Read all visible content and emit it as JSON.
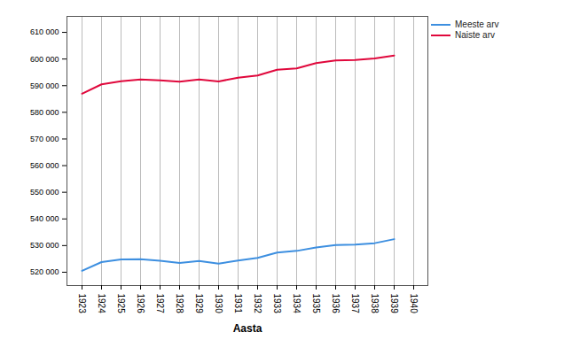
{
  "chart_data": {
    "type": "line",
    "x_label": "Aasta",
    "categories": [
      1923,
      1924,
      1925,
      1926,
      1927,
      1928,
      1929,
      1930,
      1931,
      1932,
      1933,
      1934,
      1935,
      1936,
      1937,
      1938,
      1939,
      1940
    ],
    "series": [
      {
        "name": "Meeste arv",
        "color": "#3d8fe0",
        "values": [
          520500,
          523800,
          524800,
          524900,
          524300,
          523500,
          524200,
          523200,
          524400,
          525400,
          527400,
          528000,
          529300,
          530200,
          530400,
          530900,
          532400,
          null
        ]
      },
      {
        "name": "Naiste arv",
        "color": "#e0083c",
        "values": [
          587000,
          590500,
          591700,
          592300,
          592000,
          591500,
          592300,
          591600,
          593000,
          593800,
          596000,
          596500,
          598500,
          599500,
          599600,
          600200,
          601300,
          null
        ]
      }
    ],
    "ylim": [
      515000,
      616000
    ],
    "yticks": [
      {
        "value": 520000,
        "label": "520 000"
      },
      {
        "value": 530000,
        "label": "530 000"
      },
      {
        "value": 540000,
        "label": "540 000"
      },
      {
        "value": 550000,
        "label": "550 000"
      },
      {
        "value": 560000,
        "label": "560 000"
      },
      {
        "value": 570000,
        "label": "570 000"
      },
      {
        "value": 580000,
        "label": "580 000"
      },
      {
        "value": 590000,
        "label": "590 000"
      },
      {
        "value": 600000,
        "label": "600 000"
      },
      {
        "value": 610000,
        "label": "610 000"
      }
    ],
    "grid": "x",
    "legend": "top-right"
  }
}
